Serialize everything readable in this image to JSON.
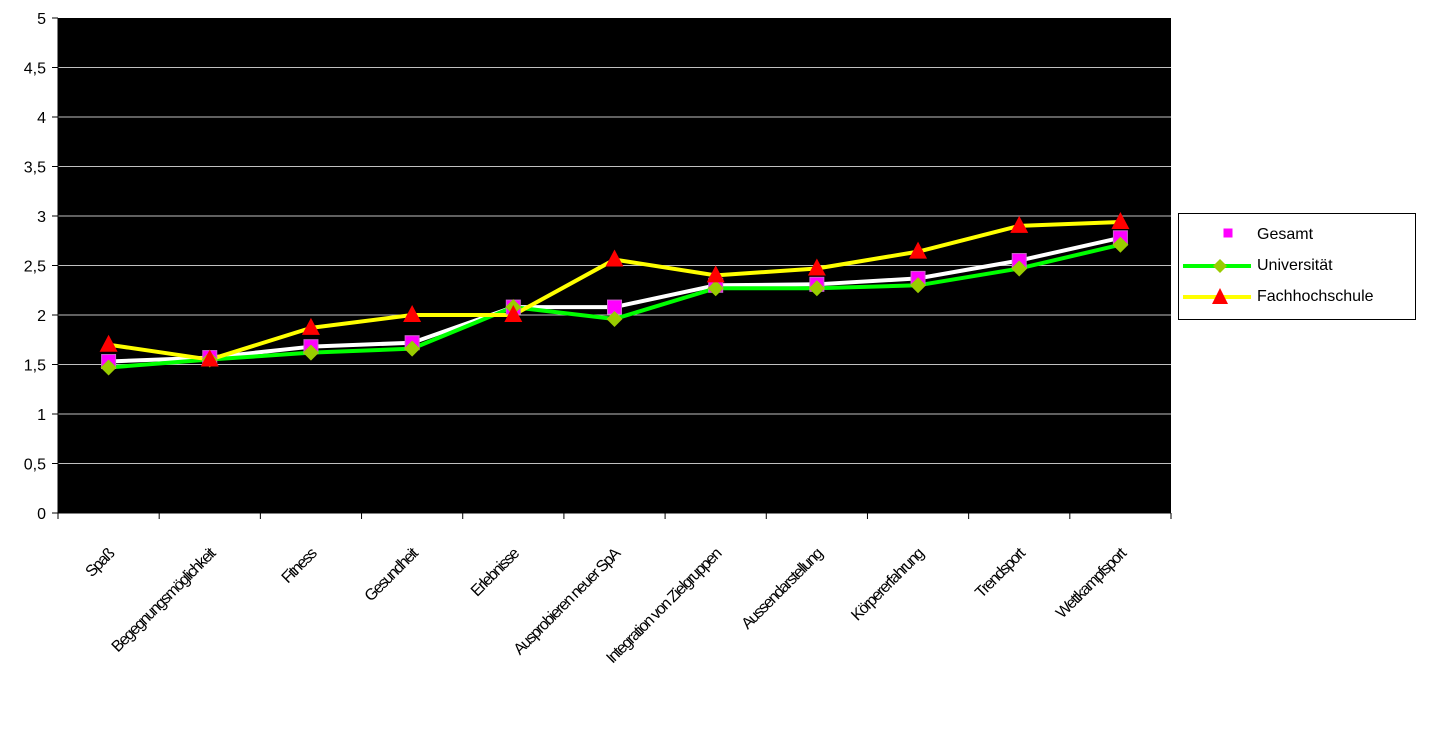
{
  "chart_data": {
    "type": "line",
    "categories": [
      "Spaß",
      "Begegnungsmöglichkeit",
      "Fitness",
      "Gesundheit",
      "Erlebnisse",
      "Ausprobieren neuer SpA",
      "Integration von Zielgruppen",
      "Aussendarstellung",
      "Körpererfahrung",
      "Trendsport",
      "Wettkampfsport"
    ],
    "series": [
      {
        "name": "Gesamt",
        "color": "#ffffff",
        "marker": "square",
        "marker_color": "#ff00ff",
        "values": [
          1.53,
          1.57,
          1.68,
          1.72,
          2.08,
          2.08,
          2.3,
          2.31,
          2.37,
          2.55,
          2.78
        ]
      },
      {
        "name": "Universität",
        "color": "#00ff00",
        "marker": "diamond",
        "marker_color": "#99cc00",
        "values": [
          1.47,
          1.55,
          1.62,
          1.66,
          2.08,
          1.96,
          2.27,
          2.27,
          2.3,
          2.47,
          2.71
        ]
      },
      {
        "name": "Fachhochschule",
        "color": "#ffff00",
        "marker": "triangle",
        "marker_color": "#ff0000",
        "values": [
          1.7,
          1.55,
          1.87,
          2.0,
          2.0,
          2.56,
          2.4,
          2.47,
          2.64,
          2.9,
          2.94
        ]
      }
    ],
    "y_ticks": [
      "0",
      "0,5",
      "1",
      "1,5",
      "2",
      "2,5",
      "3",
      "3,5",
      "4",
      "4,5",
      "5"
    ],
    "ylim": [
      0,
      5
    ],
    "grid": true,
    "plot_background": "#000000",
    "legend_position": "right"
  }
}
